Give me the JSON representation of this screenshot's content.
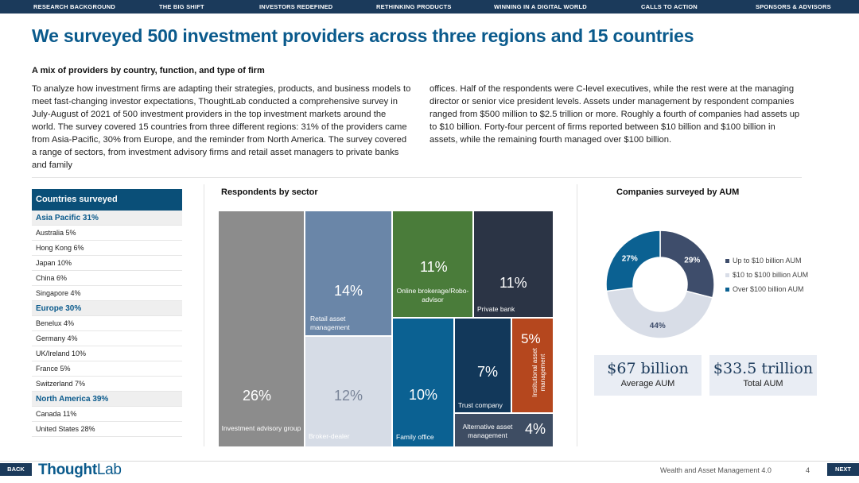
{
  "nav": {
    "items": [
      {
        "label": "RESEARCH BACKGROUND"
      },
      {
        "label": "THE BIG SHIFT"
      },
      {
        "label": "INVESTORS REDEFINED"
      },
      {
        "label": "RETHINKING PRODUCTS"
      },
      {
        "label": "WINNING IN A DIGITAL WORLD"
      },
      {
        "label": "CALLS TO ACTION"
      },
      {
        "label": "SPONSORS & ADVISORS"
      }
    ]
  },
  "title": "We surveyed 500 investment providers across three regions and 15 countries",
  "subtitle": "A mix of providers by country, function, and type of firm",
  "intro": {
    "col1": "To analyze how investment firms are adapting their strategies, products, and business models to meet fast-changing investor expectations, ThoughtLab conducted a comprehensive survey in July-August of 2021 of 500 investment providers in the top investment markets around the world. The survey covered 15 countries from three different regions: 31% of the providers came from Asia-Pacific, 30% from Europe, and the reminder from North America. The survey covered a range of sectors, from investment advisory firms and retail asset managers to private banks and family",
    "col2": "offices. Half of the respondents were C-level executives, while the rest were at the managing director or senior vice president levels. Assets under management by respondent companies ranged from $500 million to $2.5 trillion or more. Roughly a fourth of companies had assets up to $10 billion. Forty-four percent of firms reported between $10 billion and $100 billion in assets, while the remaining fourth managed over $100 billion."
  },
  "countries": {
    "header": "Countries surveyed",
    "rows": [
      {
        "label": "Asia Pacific 31%",
        "region": true
      },
      {
        "label": "Australia 5%"
      },
      {
        "label": "Hong Kong 6%"
      },
      {
        "label": "Japan 10%"
      },
      {
        "label": "China 6%"
      },
      {
        "label": "Singapore 4%"
      },
      {
        "label": "Europe 30%",
        "region": true
      },
      {
        "label": "Benelux 4%"
      },
      {
        "label": "Germany 4%"
      },
      {
        "label": "UK/Ireland 10%"
      },
      {
        "label": "France 5%"
      },
      {
        "label": "Switzerland 7%"
      },
      {
        "label": "North America 39%",
        "region": true
      },
      {
        "label": "Canada 11%"
      },
      {
        "label": "United States 28%"
      }
    ]
  },
  "sectors": {
    "title": "Respondents by sector",
    "tiles": {
      "investment_advisory": {
        "pct": "26%",
        "label": "Investment advisory group",
        "value": 26,
        "color": "#8c8c8c"
      },
      "retail_asset": {
        "pct": "14%",
        "label": "Retail asset management",
        "value": 14,
        "color": "#6a86a8"
      },
      "broker_dealer": {
        "pct": "12%",
        "label": "Broker-dealer",
        "value": 12,
        "color": "#d6dce6"
      },
      "online_brokerage": {
        "pct": "11%",
        "label": "Online brokerage/Robo-advisor",
        "value": 11,
        "color": "#4a7c3a"
      },
      "private_bank": {
        "pct": "11%",
        "label": "Private bank",
        "value": 11,
        "color": "#2b3445"
      },
      "family_office": {
        "pct": "10%",
        "label": "Family office",
        "value": 10,
        "color": "#0b6192"
      },
      "trust_company": {
        "pct": "7%",
        "label": "Trust company",
        "value": 7,
        "color": "#12385a"
      },
      "institutional": {
        "pct": "5%",
        "label": "Institutional asset management",
        "value": 5,
        "color": "#b5471e"
      },
      "alternative": {
        "pct": "4%",
        "label": "Alternative asset management",
        "value": 4,
        "color": "#3e4d63"
      }
    }
  },
  "aum": {
    "title": "Companies surveyed by AUM",
    "slices": [
      {
        "label": "Up to $10 billion AUM",
        "pct": "29%",
        "value": 29,
        "color": "#3e4d6b"
      },
      {
        "label": "$10 to $100 billion AUM",
        "pct": "44%",
        "value": 44,
        "color": "#d8dde7"
      },
      {
        "label": "Over $100 billion AUM",
        "pct": "27%",
        "value": 27,
        "color": "#0b6192"
      }
    ],
    "stats": [
      {
        "value": "$67 billion",
        "label": "Average AUM"
      },
      {
        "value": "$33.5 trillion",
        "label": "Total AUM"
      }
    ]
  },
  "footer": {
    "back": "BACK",
    "next": "NEXT",
    "logo_a": "Thought",
    "logo_b": "Lab",
    "report": "Wealth and Asset Management 4.0",
    "page": "4"
  }
}
